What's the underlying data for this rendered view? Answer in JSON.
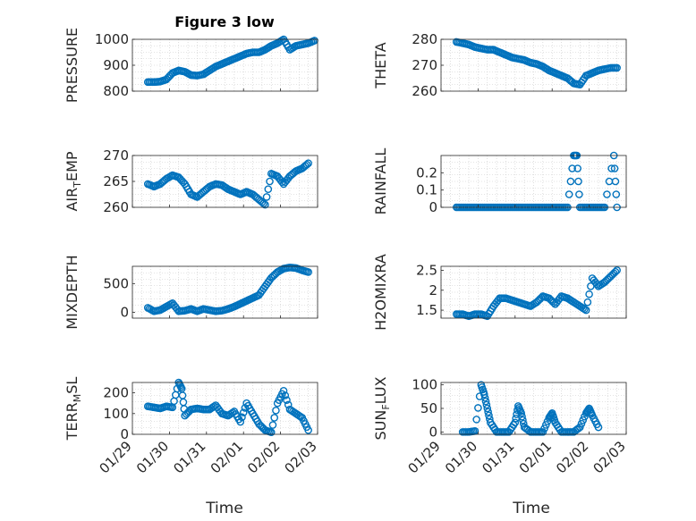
{
  "figure_title": "Figure 3 low",
  "marker_color": "#0072BD",
  "chart_data": [
    {
      "type": "scatter",
      "title": "Figure 3 low",
      "ylabel": "PRESSURE",
      "ylabel_sub": null,
      "xlim": [
        "01/29",
        "02/03"
      ],
      "ylim": [
        800,
        1000
      ],
      "yticks": [
        800,
        900,
        1000
      ],
      "xticks": [
        "01/29",
        "01/30",
        "01/31",
        "02/01",
        "02/02",
        "02/03"
      ],
      "grid": true,
      "points": [
        [
          "01/29 10:00",
          835
        ],
        [
          "01/29 14:00",
          835
        ],
        [
          "01/29 18:00",
          837
        ],
        [
          "01/29 22:00",
          845
        ],
        [
          "01/30 02:00",
          870
        ],
        [
          "01/30 06:00",
          880
        ],
        [
          "01/30 10:00",
          875
        ],
        [
          "01/30 14:00",
          862
        ],
        [
          "01/30 18:00",
          860
        ],
        [
          "01/30 22:00",
          865
        ],
        [
          "01/31 02:00",
          880
        ],
        [
          "01/31 06:00",
          895
        ],
        [
          "01/31 10:00",
          905
        ],
        [
          "01/31 14:00",
          915
        ],
        [
          "01/31 18:00",
          925
        ],
        [
          "01/31 22:00",
          935
        ],
        [
          "02/01 02:00",
          945
        ],
        [
          "02/01 06:00",
          950
        ],
        [
          "02/01 10:00",
          950
        ],
        [
          "02/01 14:00",
          960
        ],
        [
          "02/01 18:00",
          975
        ],
        [
          "02/01 22:00",
          985
        ],
        [
          "02/02 02:00",
          1000
        ],
        [
          "02/02 06:00",
          960
        ],
        [
          "02/02 10:00",
          975
        ],
        [
          "02/02 14:00",
          980
        ],
        [
          "02/02 18:00",
          985
        ],
        [
          "02/02 22:00",
          995
        ]
      ]
    },
    {
      "type": "scatter",
      "title": "",
      "ylabel": "THETA",
      "ylabel_sub": null,
      "xlim": [
        "01/29",
        "02/03"
      ],
      "ylim": [
        260,
        280
      ],
      "yticks": [
        260,
        270,
        280
      ],
      "xticks": [
        "01/29",
        "01/30",
        "01/31",
        "02/01",
        "02/02",
        "02/03"
      ],
      "grid": true,
      "points": [
        [
          "01/29 10:00",
          279
        ],
        [
          "01/29 14:00",
          278.5
        ],
        [
          "01/29 18:00",
          278
        ],
        [
          "01/29 22:00",
          277
        ],
        [
          "01/30 02:00",
          276.5
        ],
        [
          "01/30 06:00",
          276
        ],
        [
          "01/30 10:00",
          276
        ],
        [
          "01/30 14:00",
          275
        ],
        [
          "01/30 18:00",
          274
        ],
        [
          "01/30 22:00",
          273
        ],
        [
          "01/31 02:00",
          272.5
        ],
        [
          "01/31 06:00",
          272
        ],
        [
          "01/31 10:00",
          271
        ],
        [
          "01/31 14:00",
          270.5
        ],
        [
          "01/31 18:00",
          269.5
        ],
        [
          "01/31 22:00",
          268
        ],
        [
          "02/01 02:00",
          267
        ],
        [
          "02/01 06:00",
          266
        ],
        [
          "02/01 10:00",
          265
        ],
        [
          "02/01 14:00",
          263
        ],
        [
          "02/01 18:00",
          262.5
        ],
        [
          "02/01 22:00",
          266
        ],
        [
          "02/02 02:00",
          267
        ],
        [
          "02/02 06:00",
          268
        ],
        [
          "02/02 10:00",
          268.5
        ],
        [
          "02/02 14:00",
          269
        ],
        [
          "02/02 18:00",
          269
        ]
      ]
    },
    {
      "type": "scatter",
      "title": "",
      "ylabel": "AIR",
      "ylabel_sub": "T",
      "ylabel_rest": "EMP",
      "xlim": [
        "01/29",
        "02/03"
      ],
      "ylim": [
        260,
        270
      ],
      "yticks": [
        260,
        265,
        270
      ],
      "xticks": [
        "01/29",
        "01/30",
        "01/31",
        "02/01",
        "02/02",
        "02/03"
      ],
      "grid": true,
      "points": [
        [
          "01/29 10:00",
          264.5
        ],
        [
          "01/29 14:00",
          264
        ],
        [
          "01/29 18:00",
          264.5
        ],
        [
          "01/29 22:00",
          265.5
        ],
        [
          "01/30 02:00",
          266.2
        ],
        [
          "01/30 06:00",
          265.8
        ],
        [
          "01/30 10:00",
          264.5
        ],
        [
          "01/30 14:00",
          262.5
        ],
        [
          "01/30 18:00",
          262
        ],
        [
          "01/30 22:00",
          263
        ],
        [
          "01/31 02:00",
          264
        ],
        [
          "01/31 06:00",
          264.5
        ],
        [
          "01/31 10:00",
          264.3
        ],
        [
          "01/31 14:00",
          263.5
        ],
        [
          "01/31 18:00",
          263
        ],
        [
          "01/31 22:00",
          262.5
        ],
        [
          "02/01 02:00",
          263
        ],
        [
          "02/01 06:00",
          262.5
        ],
        [
          "02/01 10:00",
          261.5
        ],
        [
          "02/01 14:00",
          260.5
        ],
        [
          "02/01 18:00",
          266.5
        ],
        [
          "02/01 22:00",
          266
        ],
        [
          "02/02 02:00",
          264.5
        ],
        [
          "02/02 06:00",
          266
        ],
        [
          "02/02 10:00",
          267
        ],
        [
          "02/02 14:00",
          267.5
        ],
        [
          "02/02 18:00",
          268.5
        ]
      ]
    },
    {
      "type": "scatter",
      "title": "",
      "ylabel": "RAINFALL",
      "ylabel_sub": null,
      "xlim": [
        "01/29",
        "02/03"
      ],
      "ylim": [
        0,
        0.3
      ],
      "yticks": [
        0,
        0.1,
        0.2
      ],
      "xticks": [
        "01/29",
        "01/30",
        "01/31",
        "02/01",
        "02/02",
        "02/03"
      ],
      "grid": true,
      "points": [
        [
          "01/29 10:00",
          0
        ],
        [
          "01/29 14:00",
          0
        ],
        [
          "01/29 18:00",
          0
        ],
        [
          "01/29 22:00",
          0
        ],
        [
          "01/30 02:00",
          0
        ],
        [
          "01/30 06:00",
          0
        ],
        [
          "01/30 10:00",
          0
        ],
        [
          "01/30 14:00",
          0
        ],
        [
          "01/30 18:00",
          0
        ],
        [
          "01/30 22:00",
          0
        ],
        [
          "01/31 02:00",
          0
        ],
        [
          "01/31 06:00",
          0
        ],
        [
          "01/31 10:00",
          0
        ],
        [
          "01/31 14:00",
          0
        ],
        [
          "01/31 18:00",
          0
        ],
        [
          "01/31 22:00",
          0
        ],
        [
          "02/01 02:00",
          0
        ],
        [
          "02/01 06:00",
          0
        ],
        [
          "02/01 10:00",
          0
        ],
        [
          "02/01 14:00",
          0.3
        ],
        [
          "02/01 16:00",
          0.3
        ],
        [
          "02/01 18:00",
          0
        ],
        [
          "02/01 22:00",
          0
        ],
        [
          "02/02 02:00",
          0
        ],
        [
          "02/02 06:00",
          0
        ],
        [
          "02/02 10:00",
          0
        ],
        [
          "02/02 16:00",
          0.3
        ],
        [
          "02/02 18:00",
          0
        ]
      ]
    },
    {
      "type": "scatter",
      "title": "",
      "ylabel": "MIXDEPTH",
      "ylabel_sub": null,
      "xlim": [
        "01/29",
        "02/03"
      ],
      "ylim": [
        -100,
        800
      ],
      "yticks": [
        0,
        500
      ],
      "xticks": [
        "01/29",
        "01/30",
        "01/31",
        "02/01",
        "02/02",
        "02/03"
      ],
      "grid": true,
      "points": [
        [
          "01/29 10:00",
          80
        ],
        [
          "01/29 14:00",
          20
        ],
        [
          "01/29 18:00",
          40
        ],
        [
          "01/29 22:00",
          100
        ],
        [
          "01/30 02:00",
          160
        ],
        [
          "01/30 06:00",
          20
        ],
        [
          "01/30 10:00",
          30
        ],
        [
          "01/30 14:00",
          60
        ],
        [
          "01/30 18:00",
          20
        ],
        [
          "01/30 22:00",
          60
        ],
        [
          "01/31 02:00",
          40
        ],
        [
          "01/31 06:00",
          20
        ],
        [
          "01/31 10:00",
          30
        ],
        [
          "01/31 14:00",
          60
        ],
        [
          "01/31 18:00",
          100
        ],
        [
          "01/31 22:00",
          150
        ],
        [
          "02/01 02:00",
          200
        ],
        [
          "02/01 06:00",
          250
        ],
        [
          "02/01 10:00",
          300
        ],
        [
          "02/01 14:00",
          450
        ],
        [
          "02/01 18:00",
          600
        ],
        [
          "02/01 22:00",
          700
        ],
        [
          "02/02 02:00",
          760
        ],
        [
          "02/02 06:00",
          780
        ],
        [
          "02/02 10:00",
          770
        ],
        [
          "02/02 14:00",
          730
        ],
        [
          "02/02 18:00",
          700
        ]
      ]
    },
    {
      "type": "scatter",
      "title": "",
      "ylabel": "H2OMIXRA",
      "ylabel_sub": null,
      "xlim": [
        "01/29",
        "02/03"
      ],
      "ylim": [
        1.3,
        2.6
      ],
      "yticks": [
        1.5,
        2,
        2.5
      ],
      "xticks": [
        "01/29",
        "01/30",
        "01/31",
        "02/01",
        "02/02",
        "02/03"
      ],
      "grid": true,
      "points": [
        [
          "01/29 10:00",
          1.4
        ],
        [
          "01/29 14:00",
          1.4
        ],
        [
          "01/29 18:00",
          1.35
        ],
        [
          "01/29 22:00",
          1.4
        ],
        [
          "01/30 02:00",
          1.4
        ],
        [
          "01/30 06:00",
          1.35
        ],
        [
          "01/30 10:00",
          1.6
        ],
        [
          "01/30 14:00",
          1.8
        ],
        [
          "01/30 18:00",
          1.8
        ],
        [
          "01/30 22:00",
          1.75
        ],
        [
          "01/31 02:00",
          1.7
        ],
        [
          "01/31 06:00",
          1.65
        ],
        [
          "01/31 10:00",
          1.6
        ],
        [
          "01/31 14:00",
          1.7
        ],
        [
          "01/31 18:00",
          1.85
        ],
        [
          "01/31 22:00",
          1.8
        ],
        [
          "02/01 02:00",
          1.65
        ],
        [
          "02/01 06:00",
          1.85
        ],
        [
          "02/01 10:00",
          1.8
        ],
        [
          "02/01 14:00",
          1.7
        ],
        [
          "02/01 18:00",
          1.6
        ],
        [
          "02/01 22:00",
          1.5
        ],
        [
          "02/02 02:00",
          2.3
        ],
        [
          "02/02 06:00",
          2.1
        ],
        [
          "02/02 10:00",
          2.2
        ],
        [
          "02/02 14:00",
          2.35
        ],
        [
          "02/02 18:00",
          2.5
        ]
      ]
    },
    {
      "type": "scatter",
      "title": "",
      "ylabel": "TERR",
      "ylabel_sub": "M",
      "ylabel_rest": "SL",
      "xlim": [
        "01/29",
        "02/03"
      ],
      "ylim": [
        0,
        250
      ],
      "yticks": [
        0,
        100,
        200
      ],
      "xticks": [
        "01/29",
        "01/30",
        "01/31",
        "02/01",
        "02/02",
        "02/03"
      ],
      "grid": true,
      "points": [
        [
          "01/29 10:00",
          135
        ],
        [
          "01/29 14:00",
          130
        ],
        [
          "01/29 18:00",
          125
        ],
        [
          "01/29 22:00",
          135
        ],
        [
          "01/30 02:00",
          130
        ],
        [
          "01/30 06:00",
          250
        ],
        [
          "01/30 08:00",
          220
        ],
        [
          "01/30 10:00",
          90
        ],
        [
          "01/30 14:00",
          120
        ],
        [
          "01/30 18:00",
          125
        ],
        [
          "01/30 22:00",
          120
        ],
        [
          "01/31 02:00",
          120
        ],
        [
          "01/31 06:00",
          140
        ],
        [
          "01/31 10:00",
          100
        ],
        [
          "01/31 14:00",
          90
        ],
        [
          "01/31 18:00",
          110
        ],
        [
          "01/31 22:00",
          60
        ],
        [
          "02/01 02:00",
          150
        ],
        [
          "02/01 06:00",
          100
        ],
        [
          "02/01 10:00",
          50
        ],
        [
          "02/01 14:00",
          20
        ],
        [
          "02/01 18:00",
          10
        ],
        [
          "02/01 22:00",
          150
        ],
        [
          "02/02 02:00",
          210
        ],
        [
          "02/02 06:00",
          120
        ],
        [
          "02/02 10:00",
          100
        ],
        [
          "02/02 14:00",
          80
        ],
        [
          "02/02 18:00",
          20
        ]
      ]
    },
    {
      "type": "scatter",
      "title": "",
      "ylabel": "SUN",
      "ylabel_sub": "F",
      "ylabel_rest": "LUX",
      "xlim": [
        "01/29",
        "02/03"
      ],
      "ylim": [
        -5,
        105
      ],
      "yticks": [
        0,
        50,
        100
      ],
      "xticks": [
        "01/29",
        "01/30",
        "01/31",
        "02/01",
        "02/02",
        "02/03"
      ],
      "grid": true,
      "points": [
        [
          "01/29 14:00",
          0
        ],
        [
          "01/29 18:00",
          0
        ],
        [
          "01/29 22:00",
          2
        ],
        [
          "01/30 02:00",
          100
        ],
        [
          "01/30 04:00",
          80
        ],
        [
          "01/30 06:00",
          50
        ],
        [
          "01/30 08:00",
          20
        ],
        [
          "01/30 12:00",
          0
        ],
        [
          "01/30 16:00",
          0
        ],
        [
          "01/30 20:00",
          0
        ],
        [
          "01/31 00:00",
          20
        ],
        [
          "01/31 02:00",
          55
        ],
        [
          "01/31 04:00",
          40
        ],
        [
          "01/31 06:00",
          10
        ],
        [
          "01/31 10:00",
          0
        ],
        [
          "01/31 14:00",
          0
        ],
        [
          "01/31 18:00",
          0
        ],
        [
          "01/31 22:00",
          30
        ],
        [
          "02/01 00:00",
          40
        ],
        [
          "02/01 02:00",
          20
        ],
        [
          "02/01 06:00",
          0
        ],
        [
          "02/01 10:00",
          0
        ],
        [
          "02/01 14:00",
          0
        ],
        [
          "02/01 18:00",
          10
        ],
        [
          "02/01 22:00",
          40
        ],
        [
          "02/02 00:00",
          50
        ],
        [
          "02/02 02:00",
          35
        ],
        [
          "02/02 06:00",
          10
        ]
      ]
    }
  ],
  "xlabel": "Time"
}
